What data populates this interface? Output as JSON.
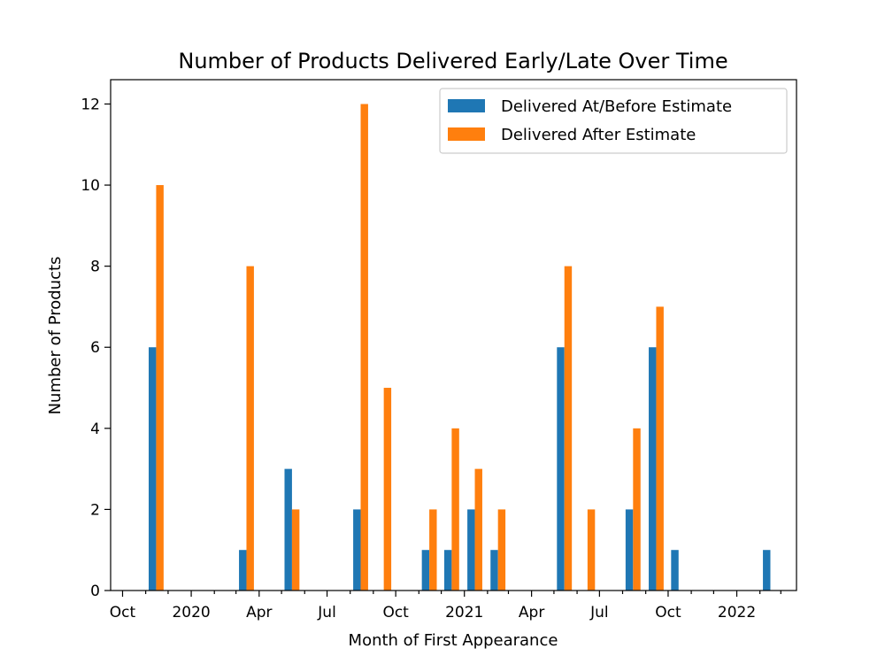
{
  "chart_data": {
    "type": "bar",
    "title": "Number of Products Delivered Early/Late Over Time",
    "xlabel": "Month of First Appearance",
    "ylabel": "Number of Products",
    "ylim": [
      0,
      12.6
    ],
    "xlim": [
      "2019-09-15",
      "2022-03-22"
    ],
    "grid": false,
    "legend_position": "top-right",
    "categories": [
      "2019-11",
      "2020-03",
      "2020-05",
      "2020-08",
      "2020-09",
      "2020-11",
      "2020-12",
      "2021-01",
      "2021-02",
      "2021-05",
      "2021-06",
      "2021-08",
      "2021-09",
      "2021-10",
      "2022-02"
    ],
    "series": [
      {
        "name": "Delivered At/Before Estimate",
        "color": "#1f77b4",
        "values": [
          6,
          1,
          3,
          2,
          0,
          1,
          1,
          2,
          1,
          6,
          0,
          2,
          6,
          1,
          1
        ]
      },
      {
        "name": "Delivered After Estimate",
        "color": "#ff7f0e",
        "values": [
          10,
          8,
          2,
          12,
          5,
          2,
          4,
          3,
          2,
          8,
          2,
          4,
          7,
          0,
          0
        ]
      }
    ],
    "y_ticks": [
      0,
      2,
      4,
      6,
      8,
      10,
      12
    ],
    "x_ticks": [
      {
        "date": "2019-10-01",
        "label": "Oct"
      },
      {
        "date": "2020-01-01",
        "label": "2020"
      },
      {
        "date": "2020-04-01",
        "label": "Apr"
      },
      {
        "date": "2020-07-01",
        "label": "Jul"
      },
      {
        "date": "2020-10-01",
        "label": "Oct"
      },
      {
        "date": "2021-01-01",
        "label": "2021"
      },
      {
        "date": "2021-04-01",
        "label": "Apr"
      },
      {
        "date": "2021-07-01",
        "label": "Jul"
      },
      {
        "date": "2021-10-01",
        "label": "Oct"
      },
      {
        "date": "2022-01-01",
        "label": "2022"
      }
    ],
    "x_minor_ticks": [
      "2019-11-01",
      "2019-12-01",
      "2020-02-01",
      "2020-03-01",
      "2020-05-01",
      "2020-06-01",
      "2020-08-01",
      "2020-09-01",
      "2020-11-01",
      "2020-12-01",
      "2021-02-01",
      "2021-03-01",
      "2021-05-01",
      "2021-06-01",
      "2021-08-01",
      "2021-09-01",
      "2021-11-01",
      "2021-12-01",
      "2022-02-01",
      "2022-03-01"
    ]
  }
}
